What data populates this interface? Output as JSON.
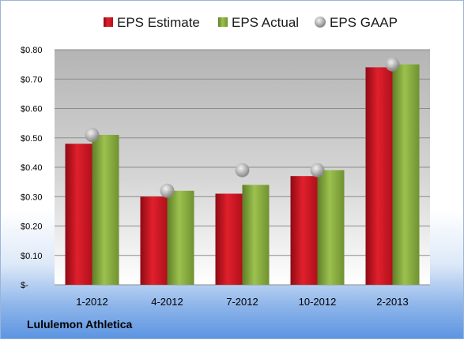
{
  "company": "Lululemon Athletica",
  "chart_data": {
    "type": "bar",
    "categories": [
      "1-2012",
      "4-2012",
      "7-2012",
      "10-2012",
      "2-2013"
    ],
    "series": [
      {
        "name": "EPS Estimate",
        "type": "bar",
        "values": [
          0.48,
          0.3,
          0.31,
          0.37,
          0.74
        ],
        "color": "#c8102e"
      },
      {
        "name": "EPS Actual",
        "type": "bar",
        "values": [
          0.51,
          0.32,
          0.34,
          0.39,
          0.75
        ],
        "color": "#7fa33a"
      },
      {
        "name": "EPS GAAP",
        "type": "scatter",
        "values": [
          0.51,
          0.32,
          0.39,
          0.39,
          0.75
        ],
        "color": "#a0a0a0"
      }
    ],
    "yticks": [
      "$-",
      "$0.10",
      "$0.20",
      "$0.30",
      "$0.40",
      "$0.50",
      "$0.60",
      "$0.70",
      "$0.80"
    ],
    "ylim": [
      0,
      0.8
    ],
    "grid": true,
    "legend": "top"
  }
}
